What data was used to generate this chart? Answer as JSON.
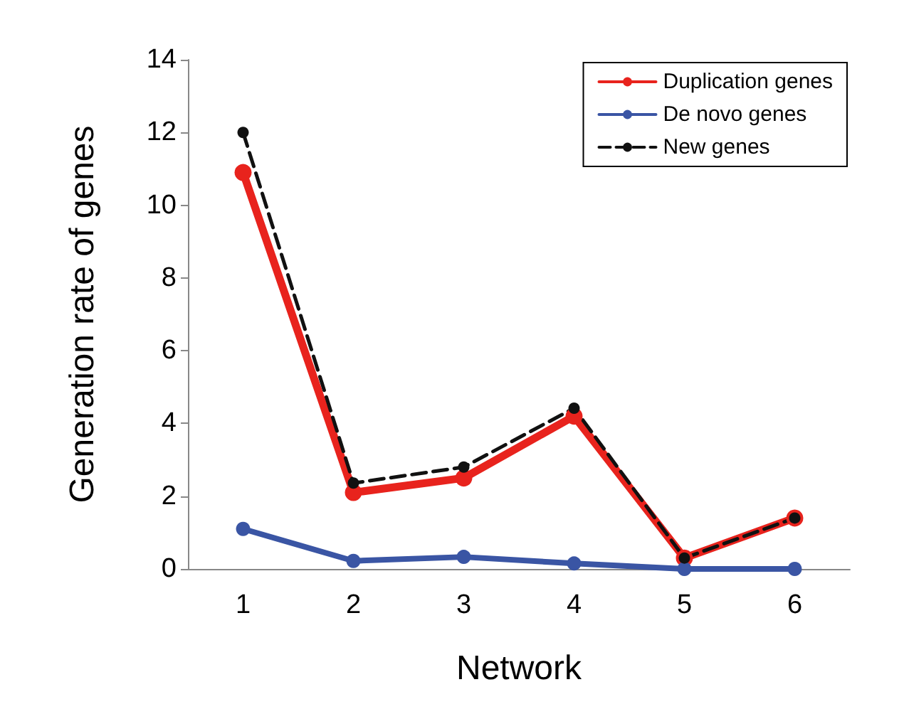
{
  "chart_data": {
    "type": "line",
    "xlabel": "Network",
    "ylabel": "Generation rate of genes",
    "categories": [
      "1",
      "2",
      "3",
      "4",
      "5",
      "6"
    ],
    "series": [
      {
        "name": "Duplication genes",
        "color": "#e8231d",
        "values": [
          10.9,
          2.1,
          2.5,
          4.2,
          0.3,
          1.4
        ]
      },
      {
        "name": "De novo genes",
        "color": "#3a55a4",
        "values": [
          1.1,
          0.22,
          0.33,
          0.15,
          0,
          0
        ]
      },
      {
        "name": "New genes",
        "color": "#111111",
        "values": [
          12.0,
          2.36,
          2.8,
          4.42,
          0.3,
          1.4
        ],
        "line_style": "dashed"
      }
    ],
    "ylim": [
      0,
      14
    ],
    "yticks": [
      0,
      2,
      4,
      6,
      8,
      10,
      12,
      14
    ],
    "grid": false,
    "legend": "top right",
    "marker": "circle",
    "line_style": "solid"
  }
}
